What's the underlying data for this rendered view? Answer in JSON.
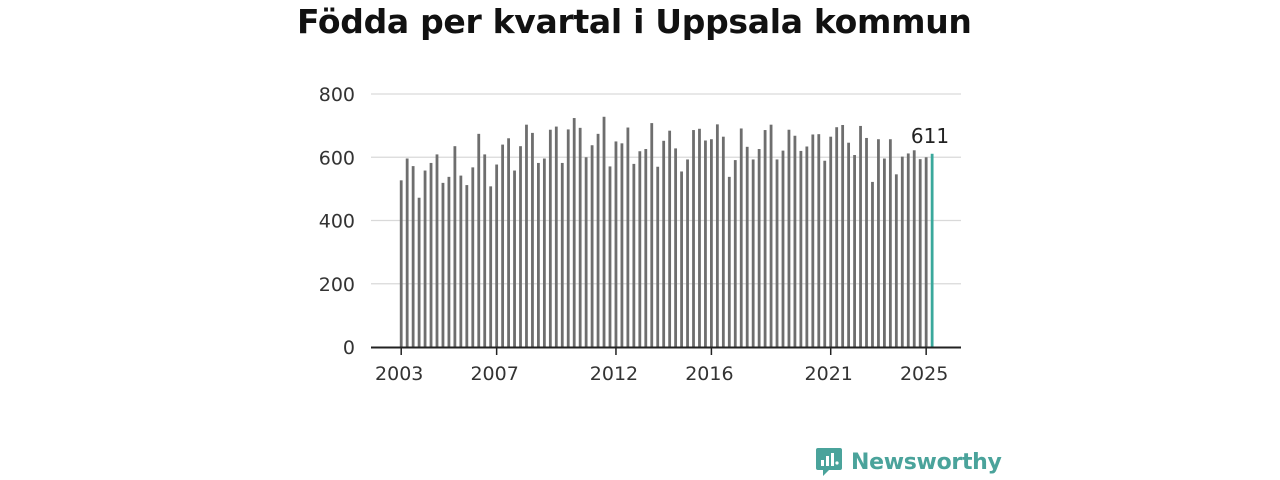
{
  "title": "Födda per kvartal i Uppsala kommun",
  "brand": {
    "name": "Newsworthy",
    "icon": "newsworthy-logo-icon"
  },
  "colors": {
    "bar": "#6e6e6e",
    "highlight": "#3aa89c",
    "grid": "#d9d9d9",
    "axis": "#222222",
    "brand": "#4aa39b"
  },
  "chart_data": {
    "type": "bar",
    "title": "Födda per kvartal i Uppsala kommun",
    "xlabel": "",
    "ylabel": "",
    "ylim": [
      0,
      800
    ],
    "yticks": [
      "0",
      "200",
      "400",
      "600",
      "800"
    ],
    "xtick_labels": [
      "2003",
      "2007",
      "2012",
      "2016",
      "2021",
      "2025"
    ],
    "grid": true,
    "start": "2003 Q1",
    "end": "2025 Q2",
    "highlight_label": "611",
    "values": [
      527,
      596,
      572,
      472,
      558,
      582,
      609,
      519,
      538,
      635,
      542,
      512,
      568,
      674,
      609,
      508,
      577,
      640,
      660,
      558,
      635,
      703,
      677,
      582,
      596,
      687,
      697,
      582,
      688,
      724,
      693,
      600,
      638,
      674,
      728,
      571,
      650,
      644,
      694,
      579,
      619,
      626,
      708,
      570,
      652,
      684,
      628,
      555,
      593,
      686,
      690,
      653,
      657,
      704,
      665,
      538,
      591,
      691,
      633,
      593,
      626,
      686,
      703,
      593,
      621,
      687,
      668,
      620,
      634,
      672,
      673,
      589,
      665,
      695,
      702,
      646,
      607,
      699,
      661,
      522,
      657,
      596,
      657,
      546,
      602,
      612,
      622,
      594,
      600,
      611
    ]
  }
}
